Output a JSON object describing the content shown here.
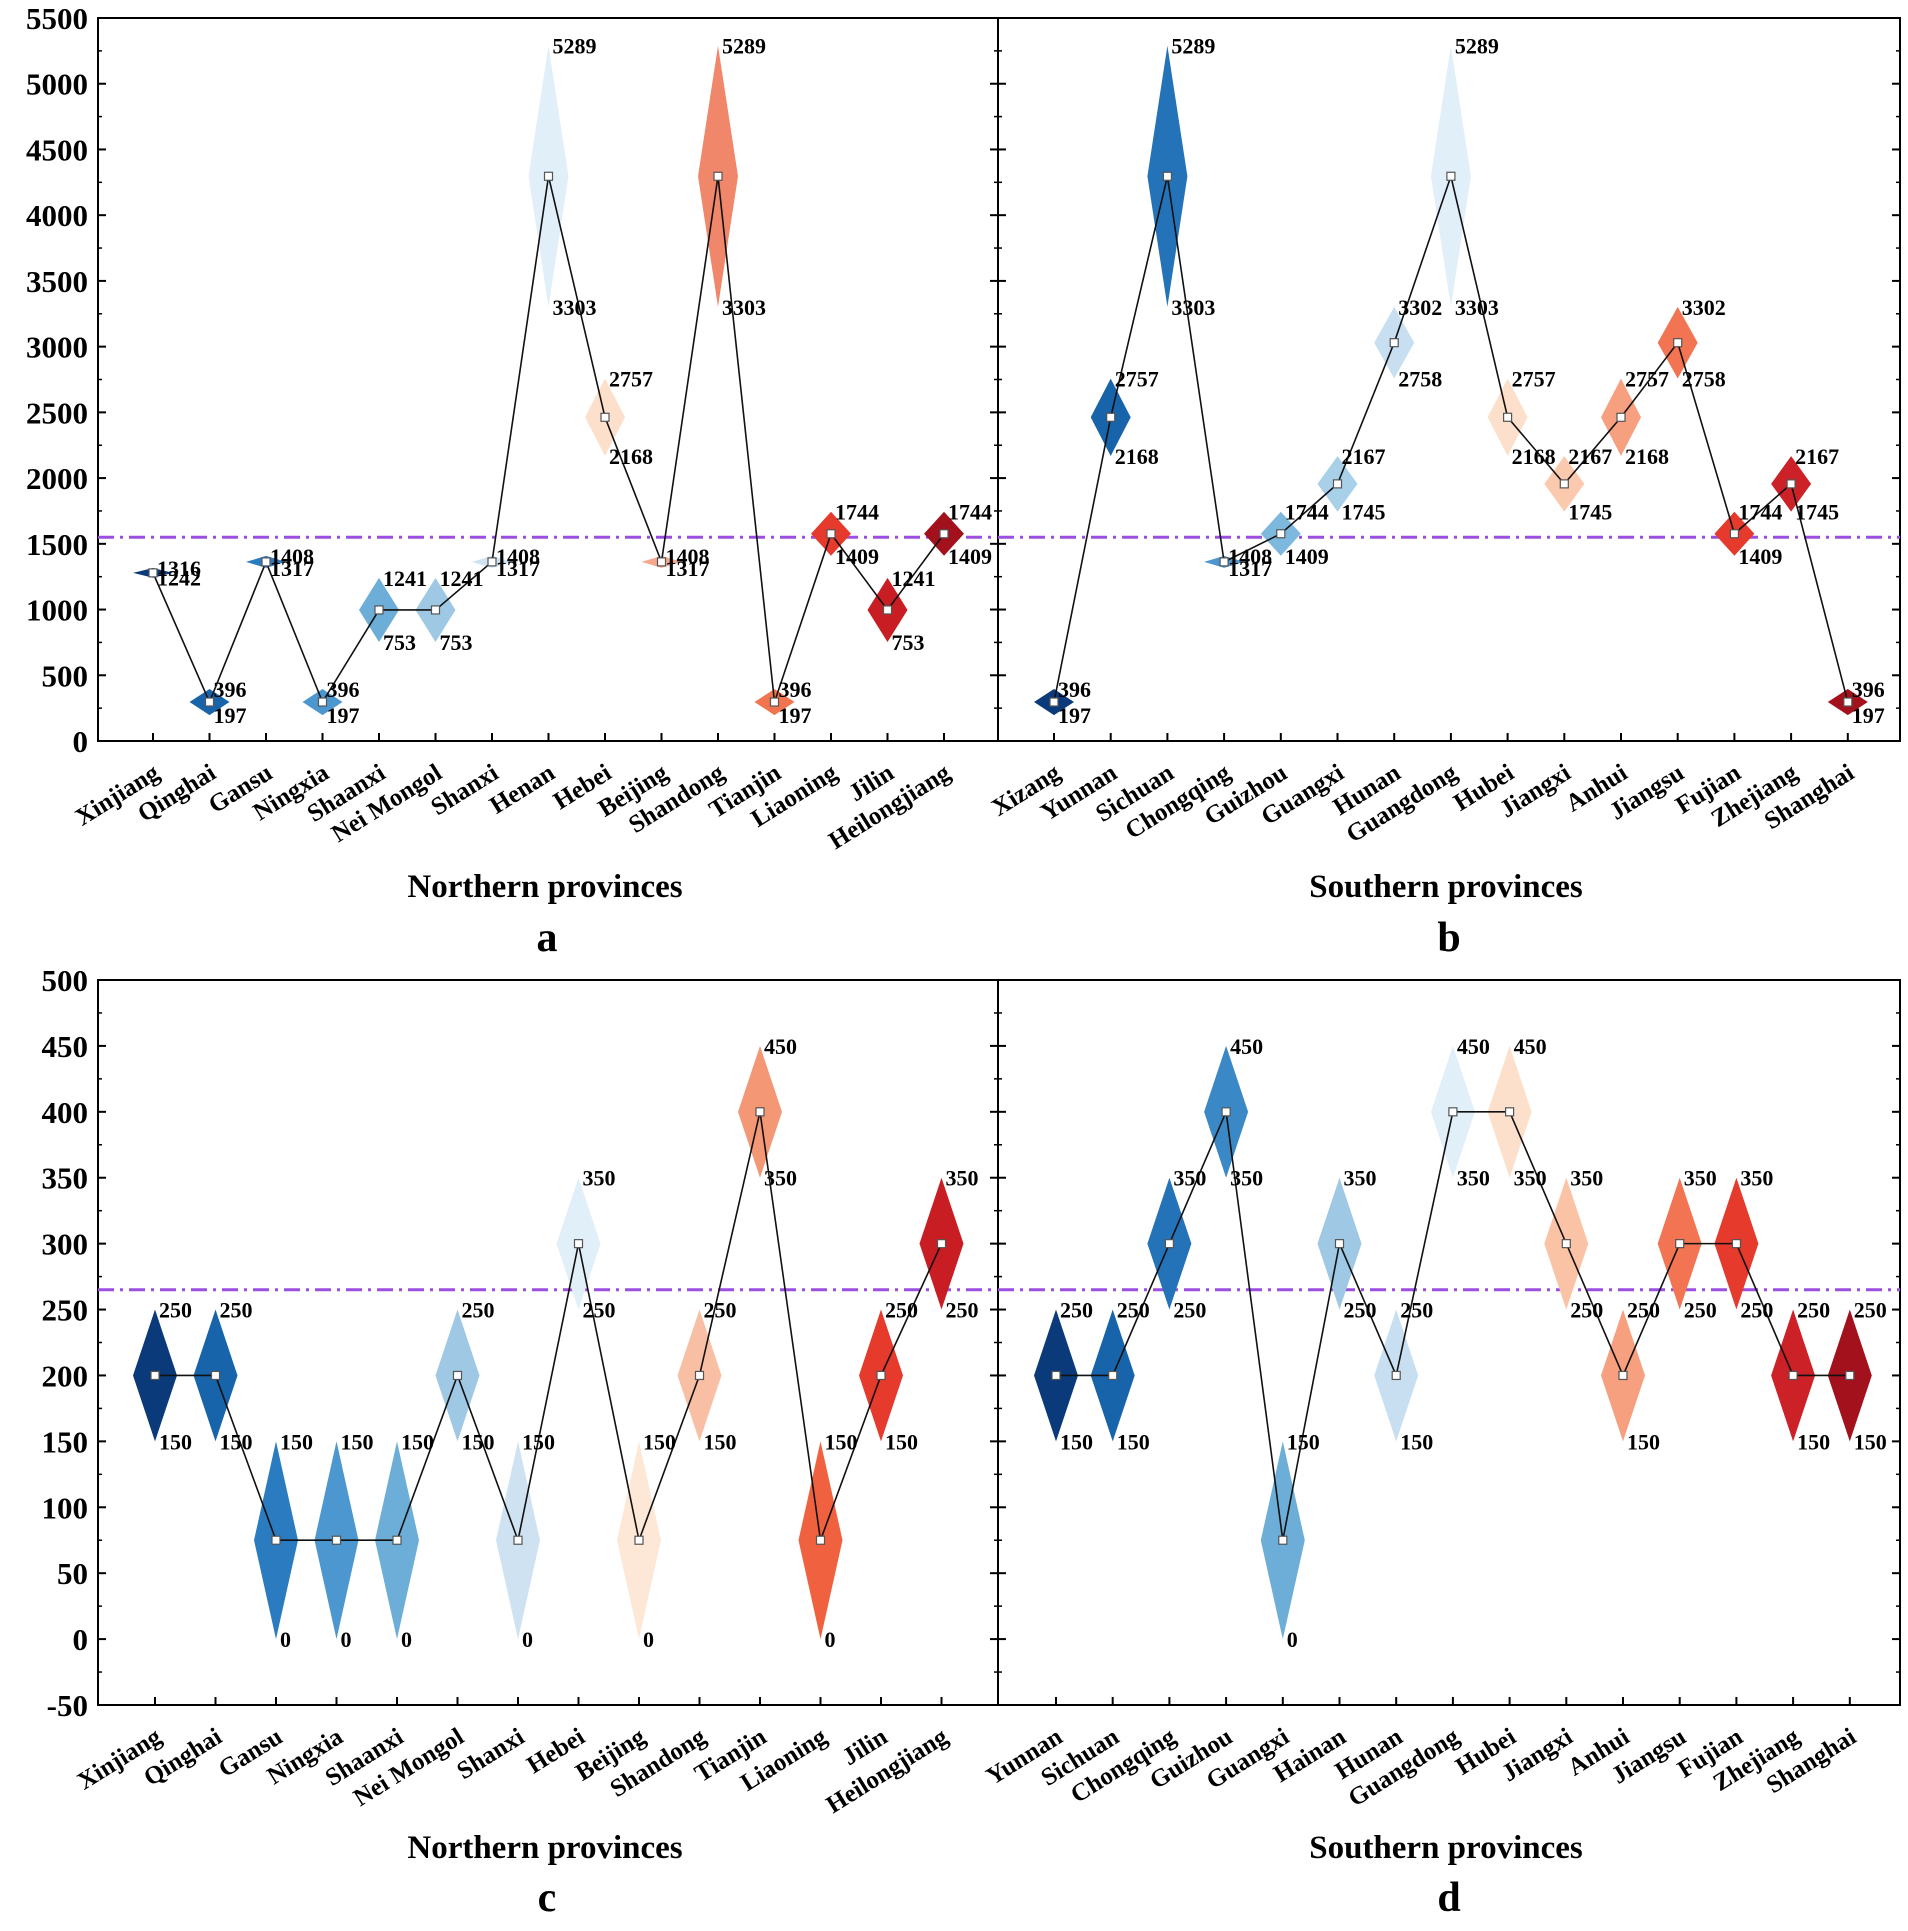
{
  "colors": {
    "reference_line": "#9b4fe0",
    "connector": "#111111"
  },
  "chart_data": [
    {
      "id": "a",
      "type": "range-diamond",
      "panel_label": "a",
      "xlabel": "Northern provinces",
      "ylim": [
        0,
        5500
      ],
      "yticks": [
        0,
        500,
        1000,
        1500,
        2000,
        2500,
        3000,
        3500,
        4000,
        4500,
        5000,
        5500
      ],
      "reference": 1550,
      "show_y_tick_labels": true,
      "categories": [
        "Xinjiang",
        "Qinghai",
        "Gansu",
        "Ningxia",
        "Shaanxi",
        "Nei Mongol",
        "Shanxi",
        "Henan",
        "Hebei",
        "Beijing",
        "Shandong",
        "Tianjin",
        "Liaoning",
        "Jilin",
        "Heilongjiang"
      ],
      "low": [
        1242,
        197,
        1317,
        197,
        753,
        753,
        1317,
        3303,
        2168,
        1317,
        3303,
        197,
        1409,
        753,
        1409
      ],
      "high": [
        1316,
        396,
        1408,
        396,
        1241,
        1241,
        1408,
        5289,
        2757,
        1408,
        5289,
        396,
        1744,
        1241,
        1744
      ],
      "mid": [
        1279,
        296.5,
        1362.5,
        296.5,
        997,
        997,
        1362.5,
        4296,
        2462.5,
        1362.5,
        4296,
        296.5,
        1576.5,
        997,
        1576.5
      ],
      "colors": [
        "#0b3a7a",
        "#1864ab",
        "#2b7bc0",
        "#4c97cf",
        "#6caed8",
        "#9ec8e4",
        "#cfe2f2",
        "#e1eff9",
        "#fde0cb",
        "#f6a88c",
        "#f0866a",
        "#f2744f",
        "#e53a2c",
        "#c81d22",
        "#a3111c"
      ]
    },
    {
      "id": "b",
      "type": "range-diamond",
      "panel_label": "b",
      "xlabel": "Southern provinces",
      "ylim": [
        0,
        5500
      ],
      "yticks": [
        0,
        500,
        1000,
        1500,
        2000,
        2500,
        3000,
        3500,
        4000,
        4500,
        5000,
        5500
      ],
      "reference": 1550,
      "show_y_tick_labels": false,
      "categories": [
        "Xizang",
        "Yunnan",
        "Sichuan",
        "Chongqing",
        "Guizhou",
        "Guangxi",
        "Hunan",
        "Guangdong",
        "Hubei",
        "Jiangxi",
        "Anhui",
        "Jiangsu",
        "Fujian",
        "Zhejiang",
        "Shanghai"
      ],
      "low": [
        197,
        2168,
        3303,
        1317,
        1409,
        1745,
        2758,
        3303,
        2168,
        1745,
        2168,
        2758,
        1409,
        1745,
        197
      ],
      "high": [
        396,
        2757,
        5289,
        1408,
        1744,
        2167,
        3302,
        5289,
        2757,
        2167,
        2757,
        3302,
        1744,
        2167,
        396
      ],
      "mid": [
        296.5,
        2462.5,
        4296,
        1362.5,
        1576.5,
        1956,
        3030,
        4296,
        2462.5,
        1956,
        2462.5,
        3030,
        1576.5,
        1956,
        296.5
      ],
      "colors": [
        "#0b3a7a",
        "#1864ab",
        "#2472b8",
        "#4c97cf",
        "#7db9de",
        "#a8d0e9",
        "#c7dff1",
        "#e1eff9",
        "#fde0cb",
        "#fbc9ad",
        "#f6a07f",
        "#f27452",
        "#e53a2c",
        "#cc2127",
        "#a3111c"
      ]
    },
    {
      "id": "c",
      "type": "range-diamond",
      "panel_label": "c",
      "xlabel": "Northern provinces",
      "ylim": [
        -50,
        500
      ],
      "yticks": [
        -50,
        0,
        50,
        100,
        150,
        200,
        250,
        300,
        350,
        400,
        450,
        500
      ],
      "reference": 265,
      "show_y_tick_labels": true,
      "categories": [
        "Xinjiang",
        "Qinghai",
        "Gansu",
        "Ningxia",
        "Shaanxi",
        "Nei Mongol",
        "Shanxi",
        "Hebei",
        "Beijing",
        "Shandong",
        "Tianjin",
        "Liaoning",
        "Jilin",
        "Heilongjiang"
      ],
      "low": [
        150,
        150,
        0,
        0,
        0,
        150,
        0,
        250,
        0,
        150,
        350,
        0,
        150,
        250
      ],
      "high": [
        250,
        250,
        150,
        150,
        150,
        250,
        150,
        350,
        150,
        250,
        450,
        150,
        250,
        350
      ],
      "mid": [
        200,
        200,
        75,
        75,
        75,
        200,
        75,
        300,
        75,
        200,
        400,
        75,
        200,
        300
      ],
      "colors": [
        "#0b3a7a",
        "#1864ab",
        "#2b7bc0",
        "#4c97cf",
        "#6caed8",
        "#9ec8e4",
        "#cfe2f2",
        "#e1eff9",
        "#fde8d8",
        "#f9bfa5",
        "#f39775",
        "#f0613f",
        "#e53a2c",
        "#c81d22"
      ]
    },
    {
      "id": "d",
      "type": "range-diamond",
      "panel_label": "d",
      "xlabel": "Southern provinces",
      "ylim": [
        -50,
        500
      ],
      "yticks": [
        -50,
        0,
        50,
        100,
        150,
        200,
        250,
        300,
        350,
        400,
        450,
        500
      ],
      "reference": 265,
      "show_y_tick_labels": false,
      "categories": [
        "Yunnan",
        "Sichuan",
        "Chongqing",
        "Guizhou",
        "Guangxi",
        "Hainan",
        "Hunan",
        "Guangdong",
        "Hubei",
        "Jiangxi",
        "Anhui",
        "Jiangsu",
        "Fujian",
        "Zhejiang",
        "Shanghai"
      ],
      "low": [
        150,
        150,
        250,
        350,
        0,
        250,
        150,
        350,
        350,
        250,
        150,
        250,
        250,
        150,
        150
      ],
      "high": [
        250,
        250,
        350,
        450,
        150,
        350,
        250,
        450,
        450,
        350,
        250,
        350,
        350,
        250,
        250
      ],
      "mid": [
        200,
        200,
        300,
        400,
        75,
        300,
        200,
        400,
        400,
        300,
        200,
        300,
        300,
        200,
        200
      ],
      "colors": [
        "#0b3a7a",
        "#1864ab",
        "#2472b8",
        "#3a88c6",
        "#6caed8",
        "#9ec8e4",
        "#c7dff1",
        "#e1eff9",
        "#fde0cb",
        "#fbc3a6",
        "#f6a07f",
        "#f27452",
        "#e53a2c",
        "#cc2127",
        "#a3111c"
      ]
    }
  ]
}
